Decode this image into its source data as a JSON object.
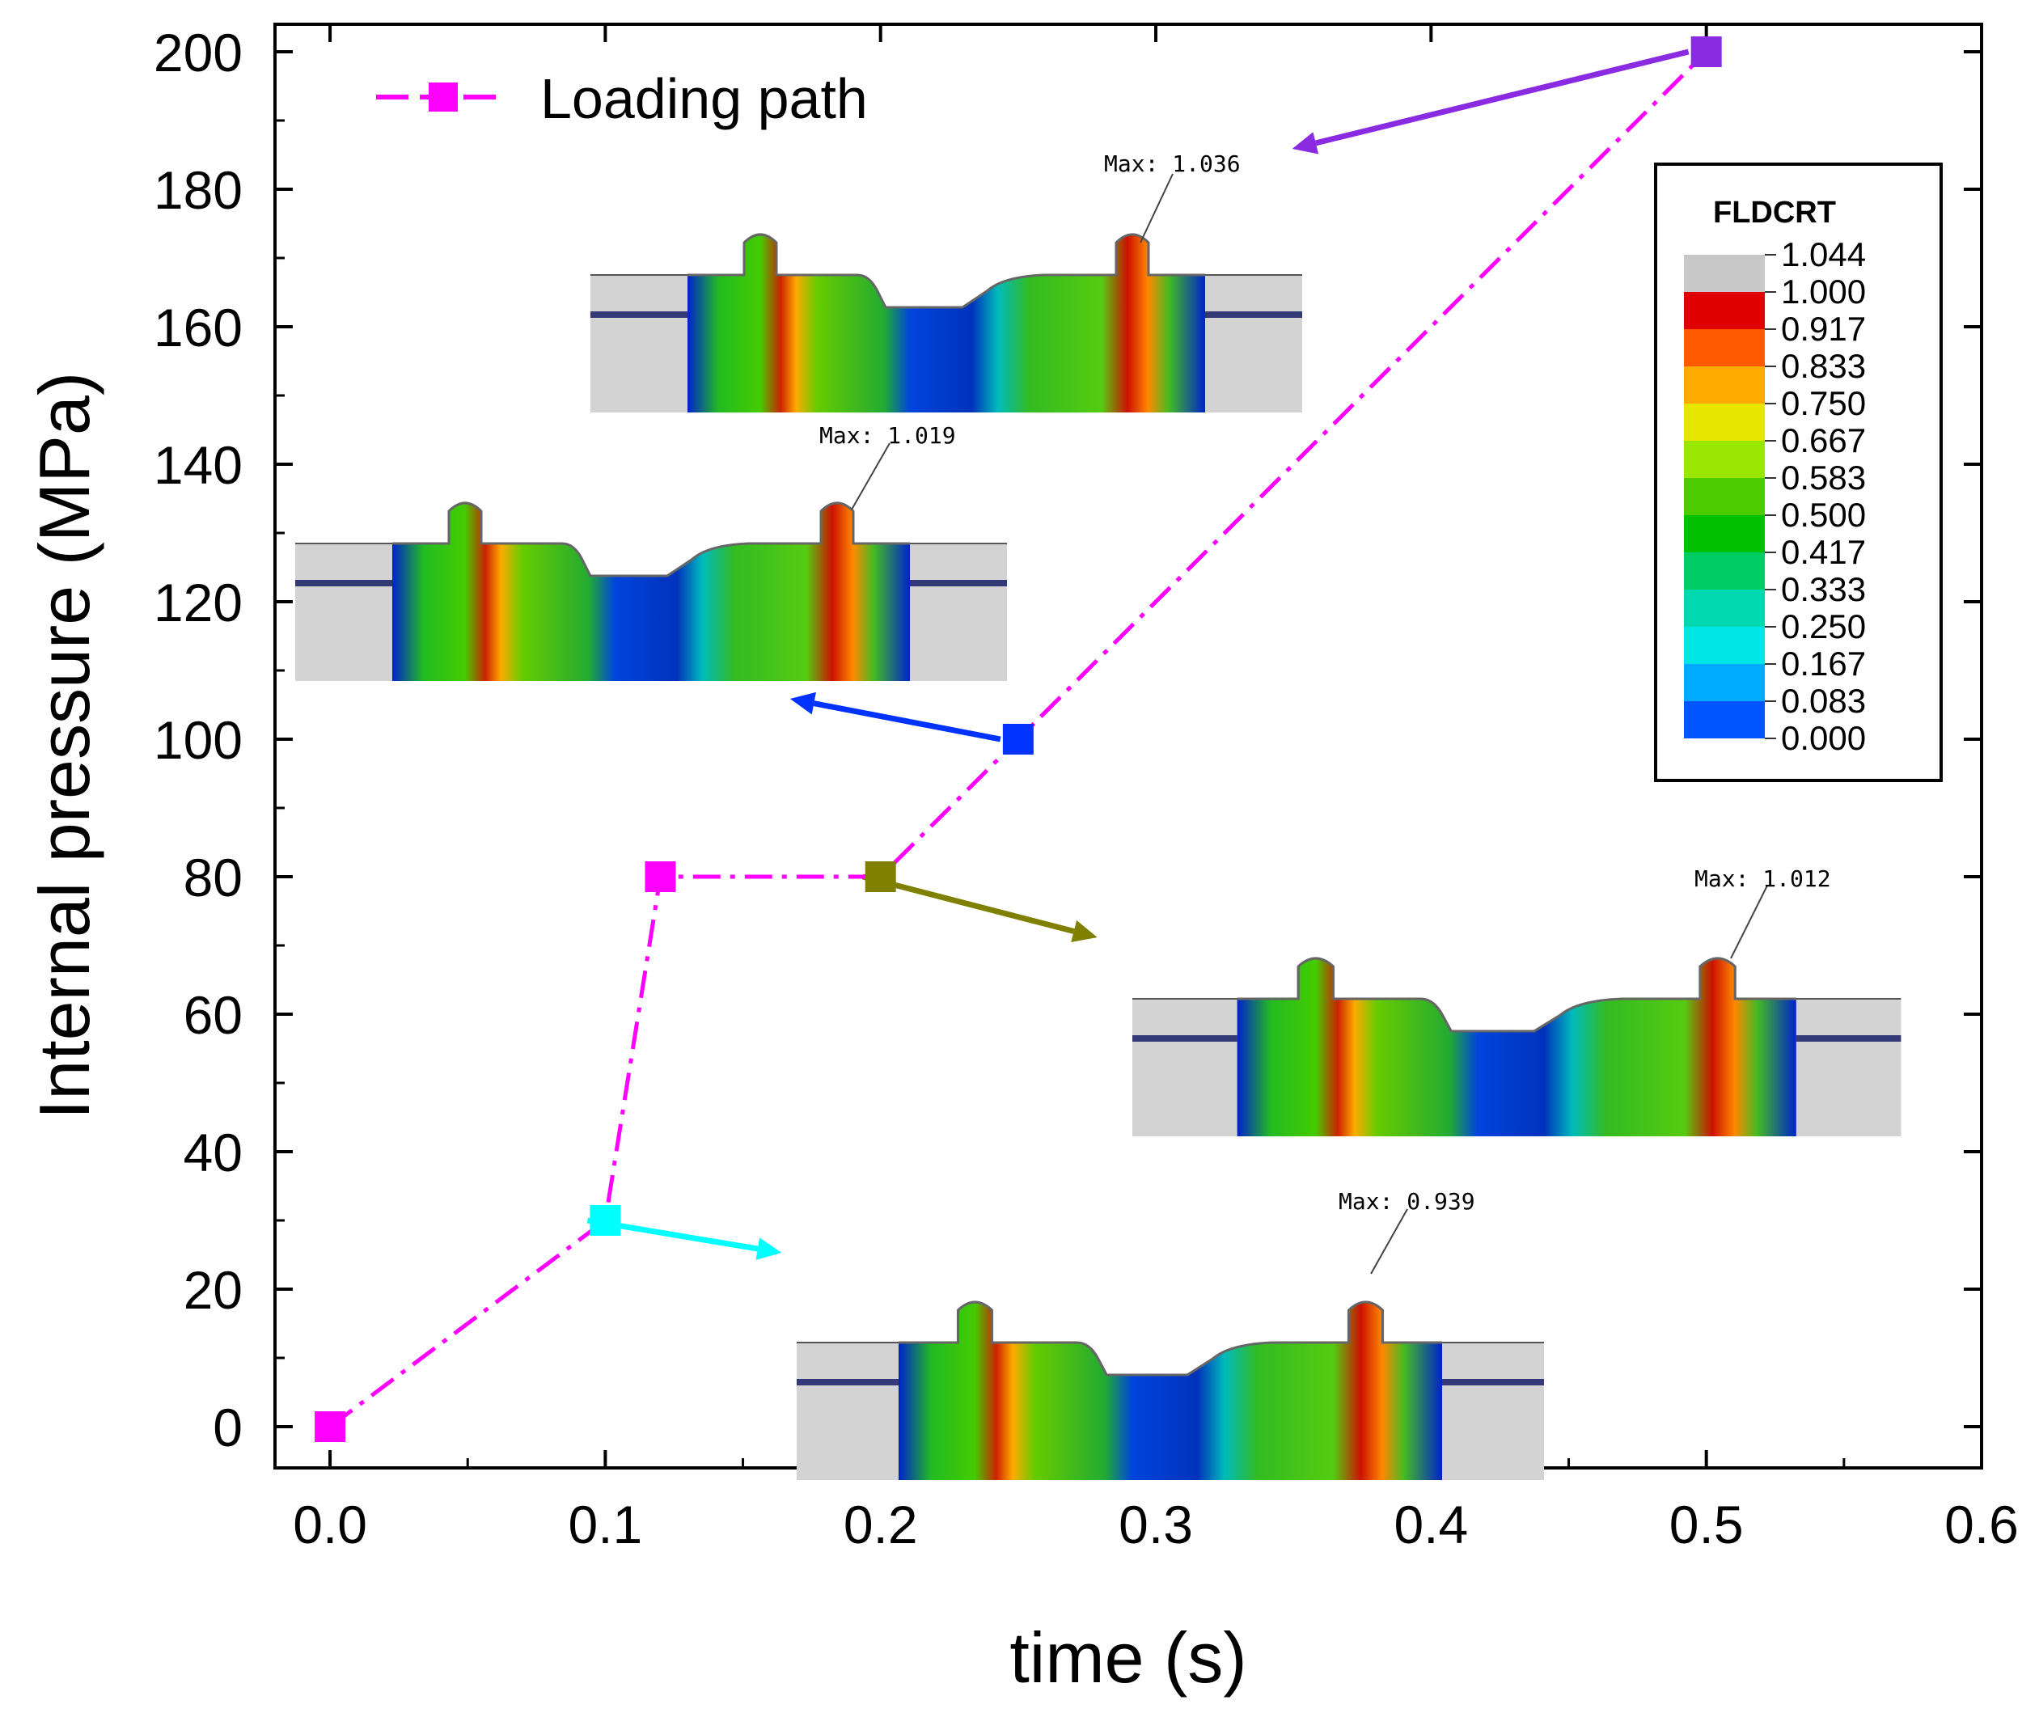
{
  "chart_data": {
    "type": "line",
    "xlabel": "time (s)",
    "ylabel": "Internal pressure (MPa)",
    "xlim": [
      -0.02,
      0.6
    ],
    "ylim": [
      -6,
      204
    ],
    "xticks": [
      "0.0",
      "0.1",
      "0.2",
      "0.3",
      "0.4",
      "0.5",
      "0.6"
    ],
    "xtick_values": [
      0.0,
      0.1,
      0.2,
      0.3,
      0.4,
      0.5,
      0.6
    ],
    "yticks": [
      "0",
      "20",
      "40",
      "60",
      "80",
      "100",
      "120",
      "140",
      "160",
      "180",
      "200"
    ],
    "ytick_values": [
      0,
      20,
      40,
      60,
      80,
      100,
      120,
      140,
      160,
      180,
      200
    ],
    "series": [
      {
        "name": "Loading path",
        "color": "#ff00ff",
        "x": [
          0.0,
          0.1,
          0.12,
          0.2,
          0.25,
          0.5
        ],
        "y": [
          0,
          30,
          80,
          80,
          100,
          200
        ]
      }
    ],
    "highlight_points": [
      {
        "x": 0.1,
        "y": 30,
        "color": "#00ffff"
      },
      {
        "x": 0.2,
        "y": 80,
        "color": "#808000"
      },
      {
        "x": 0.25,
        "y": 100,
        "color": "#0033ff"
      },
      {
        "x": 0.5,
        "y": 200,
        "color": "#8a2be2"
      }
    ],
    "legend": {
      "label": "Loading path",
      "position": "top-left"
    },
    "annotations": [
      {
        "text": "Max: 1.036",
        "linked_point": {
          "x": 0.5,
          "y": 200
        },
        "arrow_color": "#8a2be2"
      },
      {
        "text": "Max: 1.019",
        "linked_point": {
          "x": 0.25,
          "y": 100
        },
        "arrow_color": "#0033ff"
      },
      {
        "text": "Max: 1.012",
        "linked_point": {
          "x": 0.2,
          "y": 80
        },
        "arrow_color": "#808000"
      },
      {
        "text": "Max: 0.939",
        "linked_point": {
          "x": 0.1,
          "y": 30
        },
        "arrow_color": "#00ffff"
      }
    ],
    "colorbar": {
      "title": "FLDCRT",
      "labels": [
        "1.044",
        "1.000",
        "0.917",
        "0.833",
        "0.750",
        "0.667",
        "0.583",
        "0.500",
        "0.417",
        "0.333",
        "0.250",
        "0.167",
        "0.083",
        "0.000"
      ],
      "colors": [
        "#c8c8c8",
        "#e00000",
        "#ff5a00",
        "#ffaa00",
        "#e6e600",
        "#99e600",
        "#4ccc00",
        "#00c000",
        "#00cc66",
        "#00d8b0",
        "#00e6e6",
        "#00aaff",
        "#0055ff",
        "#0000dd"
      ]
    }
  }
}
